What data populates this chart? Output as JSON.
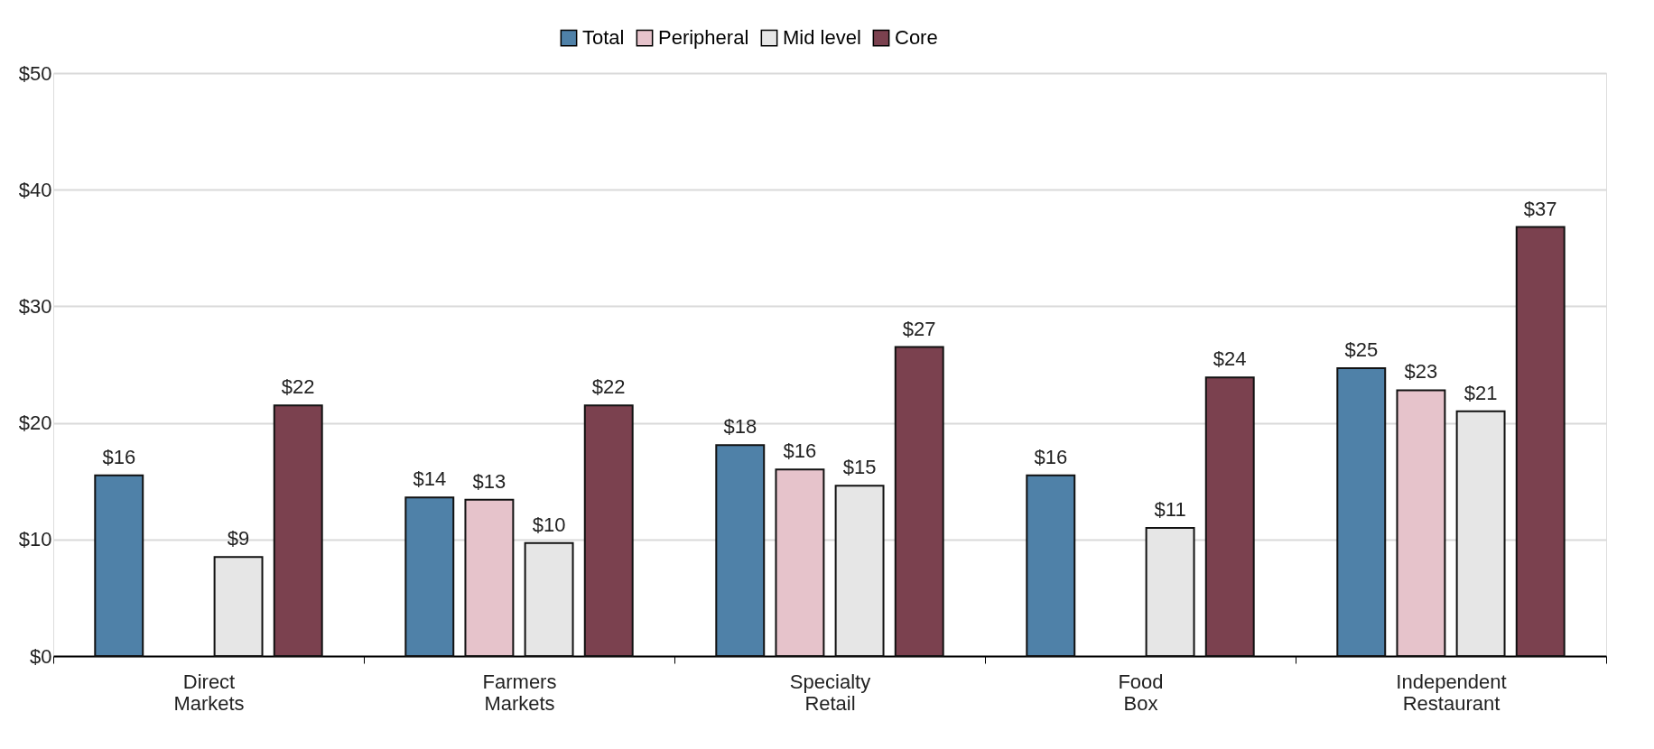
{
  "chart_data": {
    "type": "bar",
    "categories": [
      "Direct Markets",
      "Farmers Markets",
      "Specialty Retail",
      "Food Box",
      "Independent Restaurant"
    ],
    "series": [
      {
        "name": "Total",
        "color": "#4f81a8",
        "values": [
          15.5,
          13.6,
          18.1,
          15.5,
          24.7
        ],
        "value_labels": [
          "$16",
          "$14",
          "$18",
          "$16",
          "$25"
        ]
      },
      {
        "name": "Peripheral",
        "color": "#e6c3cb",
        "values": [
          null,
          13.4,
          16.0,
          null,
          22.8
        ],
        "value_labels": [
          null,
          "$13",
          "$16",
          null,
          "$23"
        ]
      },
      {
        "name": "Mid level",
        "color": "#e6e6e6",
        "values": [
          8.5,
          9.7,
          14.6,
          11.0,
          21.0
        ],
        "value_labels": [
          "$9",
          "$10",
          "$15",
          "$11",
          "$21"
        ]
      },
      {
        "name": "Core",
        "color": "#7b414f",
        "values": [
          21.5,
          21.5,
          26.5,
          23.9,
          36.8
        ],
        "value_labels": [
          "$22",
          "$22",
          "$27",
          "$24",
          "$37"
        ]
      }
    ],
    "ylim": [
      0,
      50
    ],
    "yticks": [
      {
        "value": 0,
        "label": "$0"
      },
      {
        "value": 10,
        "label": "$10"
      },
      {
        "value": 20,
        "label": "$20"
      },
      {
        "value": 30,
        "label": "$30"
      },
      {
        "value": 40,
        "label": "$40"
      },
      {
        "value": 50,
        "label": "$50"
      }
    ],
    "grid": "y",
    "legend": "top"
  }
}
